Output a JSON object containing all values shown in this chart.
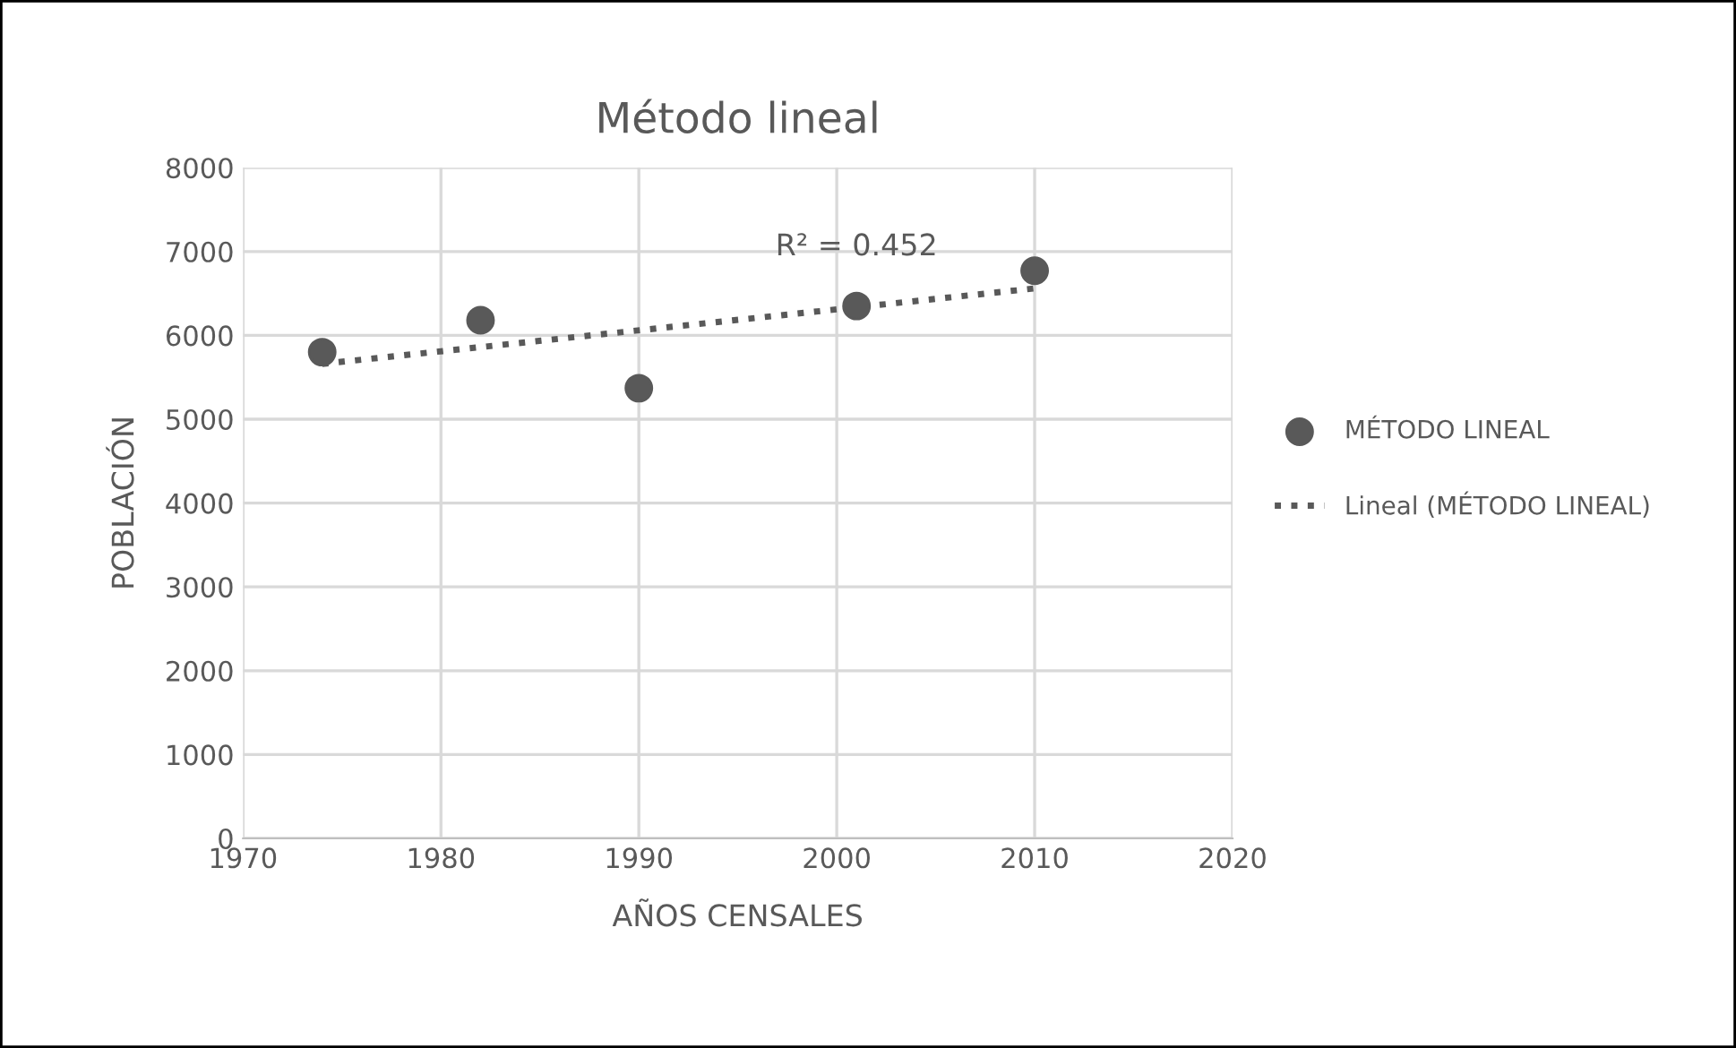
{
  "chart_data": {
    "type": "scatter",
    "title": "Método lineal",
    "xlabel": "AÑOS CENSALES",
    "ylabel": "POBLACIÓN",
    "x": [
      1974,
      1982,
      1990,
      2001,
      2010
    ],
    "series": [
      {
        "name": "MÉTODO LINEAL",
        "color": "#595959",
        "values": [
          5800,
          6180,
          5370,
          6350,
          6770
        ],
        "marker": "circle"
      },
      {
        "name": "Lineal (MÉTODO LINEAL)",
        "type": "line",
        "color": "#595959",
        "x": [
          1974,
          2010
        ],
        "values": [
          5660,
          6560
        ],
        "line_style": "dotted",
        "marker": "none"
      }
    ],
    "annotations": [
      "R² = 0.452"
    ],
    "xlim": [
      1970,
      2020
    ],
    "xticks": [
      1970,
      1980,
      1990,
      2000,
      2010,
      2020
    ],
    "ylim": [
      0,
      8000
    ],
    "yticks": [
      0,
      1000,
      2000,
      3000,
      4000,
      5000,
      6000,
      7000,
      8000
    ],
    "grid": true,
    "legend": "right"
  }
}
